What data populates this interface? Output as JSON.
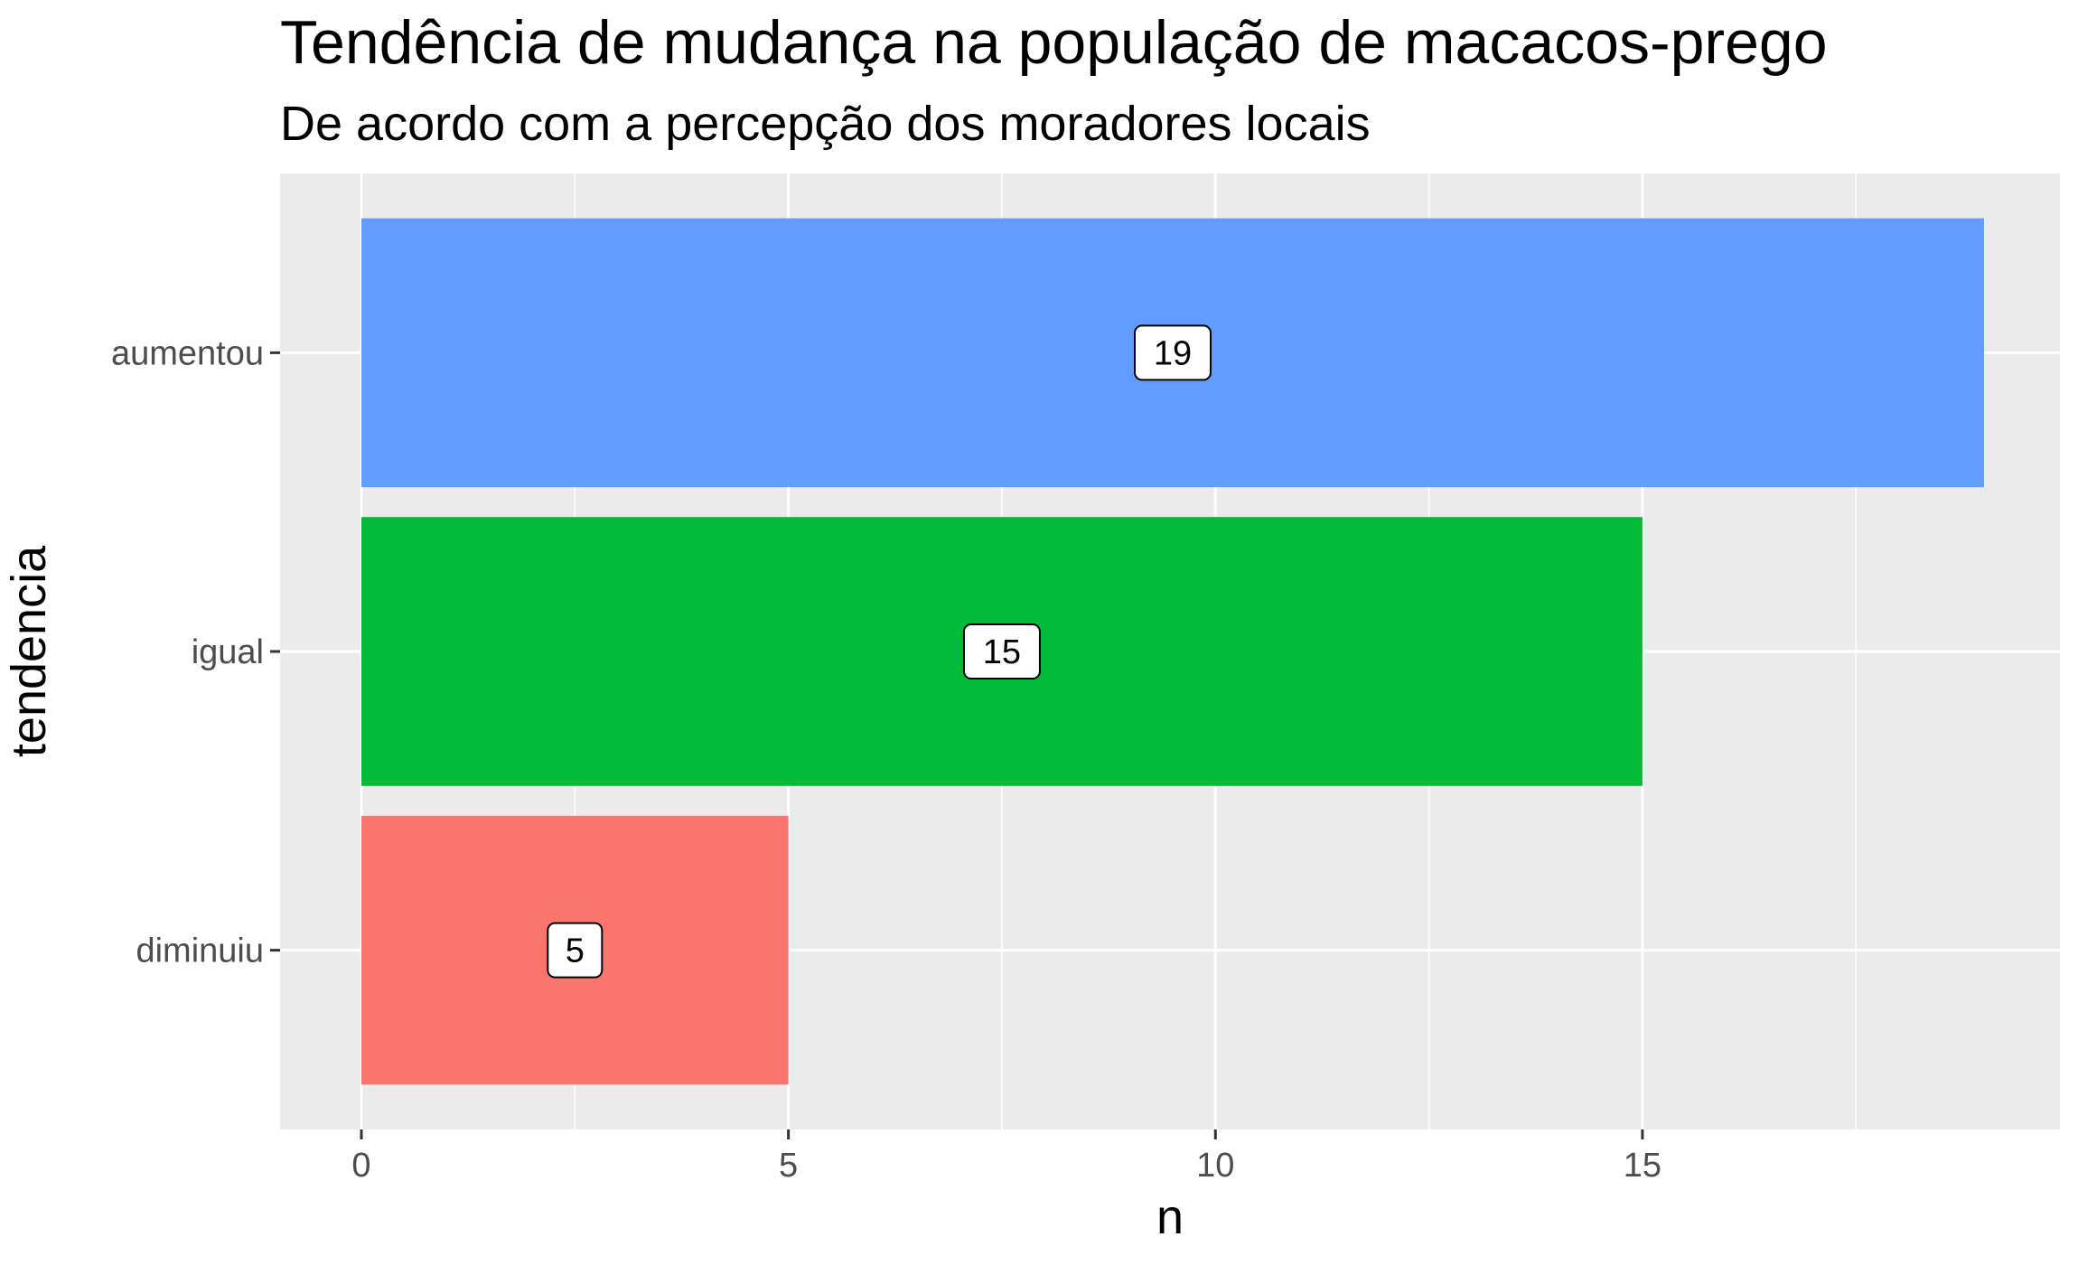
{
  "chart_data": {
    "type": "bar",
    "orientation": "horizontal",
    "title": "Tendência de mudança na população de macacos-prego",
    "subtitle": "De acordo com a percepção dos moradores locais",
    "xlabel": "n",
    "ylabel": "tendencia",
    "categories": [
      "diminuiu",
      "igual",
      "aumentou"
    ],
    "values": [
      5,
      15,
      19
    ],
    "data_labels": [
      "5",
      "15",
      "19"
    ],
    "colors": [
      "#F8766D",
      "#00BA38",
      "#619CFF"
    ],
    "xlim": [
      0,
      19.95
    ],
    "x_ticks": [
      0,
      5,
      10,
      15
    ],
    "x_tick_labels": [
      "0",
      "5",
      "10",
      "15"
    ],
    "grid": true,
    "legend": "none",
    "panel_background": "#EBEBEB",
    "grid_color": "#FFFFFF"
  }
}
